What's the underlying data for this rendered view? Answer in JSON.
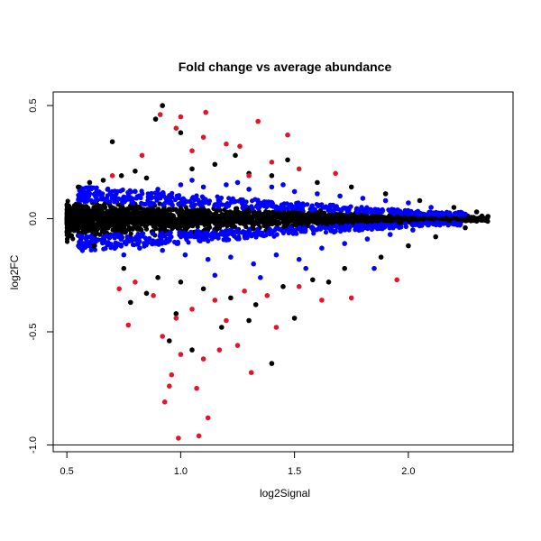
{
  "chart_data": {
    "type": "scatter",
    "title": "Fold change vs average abundance",
    "xlabel": "log2Signal",
    "ylabel": "log2FC",
    "xlim": [
      0.44,
      2.46
    ],
    "ylim": [
      -1.03,
      0.56
    ],
    "x_ticks": [
      0.5,
      1.0,
      1.5,
      2.0
    ],
    "x_tick_labels": [
      "0.5",
      "1.0",
      "1.5",
      "2.0"
    ],
    "y_ticks": [
      -1.0,
      -0.5,
      0.0,
      0.5
    ],
    "y_tick_labels": [
      "-1.0",
      "-0.5",
      "0.0",
      "0.5"
    ],
    "reference_line_y": -1.0,
    "grid": false,
    "legend": "none",
    "colors": {
      "all": "#000000",
      "moderate": "#0000ff",
      "significant": "#e0162b",
      "reference_line": "#000080"
    },
    "series": [
      {
        "color": "#000000",
        "points": [
          [
            0.92,
            0.5
          ],
          [
            0.89,
            0.44
          ],
          [
            0.7,
            0.34
          ],
          [
            1.0,
            0.38
          ],
          [
            1.24,
            0.28
          ],
          [
            1.47,
            0.26
          ],
          [
            0.55,
            0.14
          ],
          [
            0.6,
            0.16
          ],
          [
            0.66,
            0.17
          ],
          [
            0.74,
            0.19
          ],
          [
            0.8,
            0.21
          ],
          [
            0.85,
            0.18
          ],
          [
            1.05,
            0.22
          ],
          [
            1.15,
            0.24
          ],
          [
            1.3,
            0.2
          ],
          [
            1.4,
            0.19
          ],
          [
            1.6,
            0.16
          ],
          [
            1.75,
            0.14
          ],
          [
            1.9,
            0.11
          ],
          [
            2.05,
            0.08
          ],
          [
            2.2,
            0.05
          ],
          [
            2.3,
            0.03
          ],
          [
            2.35,
            0.01
          ],
          [
            0.62,
            -0.12
          ],
          [
            0.75,
            -0.22
          ],
          [
            0.9,
            -0.26
          ],
          [
            1.0,
            -0.28
          ],
          [
            1.1,
            -0.31
          ],
          [
            1.22,
            -0.35
          ],
          [
            1.33,
            -0.38
          ],
          [
            1.45,
            -0.3
          ],
          [
            1.58,
            -0.27
          ],
          [
            1.72,
            -0.22
          ],
          [
            1.88,
            -0.17
          ],
          [
            2.0,
            -0.12
          ],
          [
            2.12,
            -0.08
          ],
          [
            2.25,
            -0.04
          ],
          [
            0.98,
            -0.42
          ],
          [
            1.18,
            -0.48
          ],
          [
            1.3,
            -0.45
          ],
          [
            1.4,
            -0.64
          ],
          [
            0.78,
            -0.37
          ],
          [
            0.85,
            -0.33
          ],
          [
            0.95,
            -0.54
          ],
          [
            1.05,
            -0.58
          ],
          [
            1.5,
            -0.44
          ],
          [
            1.65,
            -0.28
          ],
          [
            0.52,
            0.0
          ],
          [
            0.58,
            0.05
          ],
          [
            2.1,
            0.0
          ]
        ]
      },
      {
        "color": "#0000ff",
        "points": [
          [
            0.6,
            0.11
          ],
          [
            0.7,
            0.1
          ],
          [
            0.8,
            0.12
          ],
          [
            0.9,
            0.13
          ],
          [
            1.0,
            0.15
          ],
          [
            1.1,
            0.14
          ],
          [
            1.2,
            0.15
          ],
          [
            1.3,
            0.13
          ],
          [
            1.4,
            0.14
          ],
          [
            1.5,
            0.12
          ],
          [
            1.6,
            0.11
          ],
          [
            1.7,
            0.1
          ],
          [
            1.8,
            0.09
          ],
          [
            1.9,
            0.08
          ],
          [
            2.0,
            0.07
          ],
          [
            2.1,
            0.05
          ],
          [
            2.25,
            0.02
          ],
          [
            0.62,
            -0.09
          ],
          [
            0.72,
            -0.11
          ],
          [
            0.82,
            -0.13
          ],
          [
            0.92,
            -0.14
          ],
          [
            1.02,
            -0.16
          ],
          [
            1.12,
            -0.18
          ],
          [
            1.22,
            -0.17
          ],
          [
            1.32,
            -0.2
          ],
          [
            1.42,
            -0.16
          ],
          [
            1.52,
            -0.18
          ],
          [
            1.62,
            -0.13
          ],
          [
            1.72,
            -0.11
          ],
          [
            1.82,
            -0.09
          ],
          [
            1.92,
            -0.07
          ],
          [
            2.02,
            -0.05
          ],
          [
            1.15,
            -0.25
          ],
          [
            1.35,
            -0.26
          ],
          [
            1.55,
            -0.22
          ],
          [
            1.85,
            -0.22
          ],
          [
            1.05,
            0.17
          ],
          [
            1.25,
            0.16
          ],
          [
            0.75,
            -0.16
          ],
          [
            1.45,
            0.15
          ]
        ]
      },
      {
        "color": "#e0162b",
        "points": [
          [
            0.91,
            0.46
          ],
          [
            1.0,
            0.45
          ],
          [
            1.11,
            0.47
          ],
          [
            1.34,
            0.43
          ],
          [
            1.47,
            0.37
          ],
          [
            0.98,
            0.4
          ],
          [
            1.1,
            0.36
          ],
          [
            1.2,
            0.33
          ],
          [
            1.26,
            0.32
          ],
          [
            0.83,
            0.28
          ],
          [
            1.05,
            0.3
          ],
          [
            1.4,
            0.25
          ],
          [
            1.52,
            0.22
          ],
          [
            1.68,
            0.2
          ],
          [
            0.7,
            0.19
          ],
          [
            1.3,
            0.19
          ],
          [
            0.73,
            -0.31
          ],
          [
            0.8,
            -0.28
          ],
          [
            0.88,
            -0.34
          ],
          [
            0.98,
            -0.44
          ],
          [
            1.05,
            -0.4
          ],
          [
            1.15,
            -0.36
          ],
          [
            1.28,
            -0.32
          ],
          [
            1.38,
            -0.34
          ],
          [
            1.52,
            -0.3
          ],
          [
            1.75,
            -0.35
          ],
          [
            1.95,
            -0.27
          ],
          [
            0.77,
            -0.47
          ],
          [
            0.92,
            -0.52
          ],
          [
            1.0,
            -0.6
          ],
          [
            1.1,
            -0.62
          ],
          [
            1.17,
            -0.58
          ],
          [
            1.25,
            -0.56
          ],
          [
            0.96,
            -0.69
          ],
          [
            0.95,
            -0.74
          ],
          [
            1.07,
            -0.75
          ],
          [
            0.93,
            -0.81
          ],
          [
            1.12,
            -0.88
          ],
          [
            1.08,
            -0.96
          ],
          [
            0.99,
            -0.97
          ],
          [
            1.31,
            -0.68
          ],
          [
            1.42,
            -0.48
          ],
          [
            1.62,
            -0.36
          ],
          [
            1.2,
            -0.45
          ]
        ]
      }
    ]
  }
}
